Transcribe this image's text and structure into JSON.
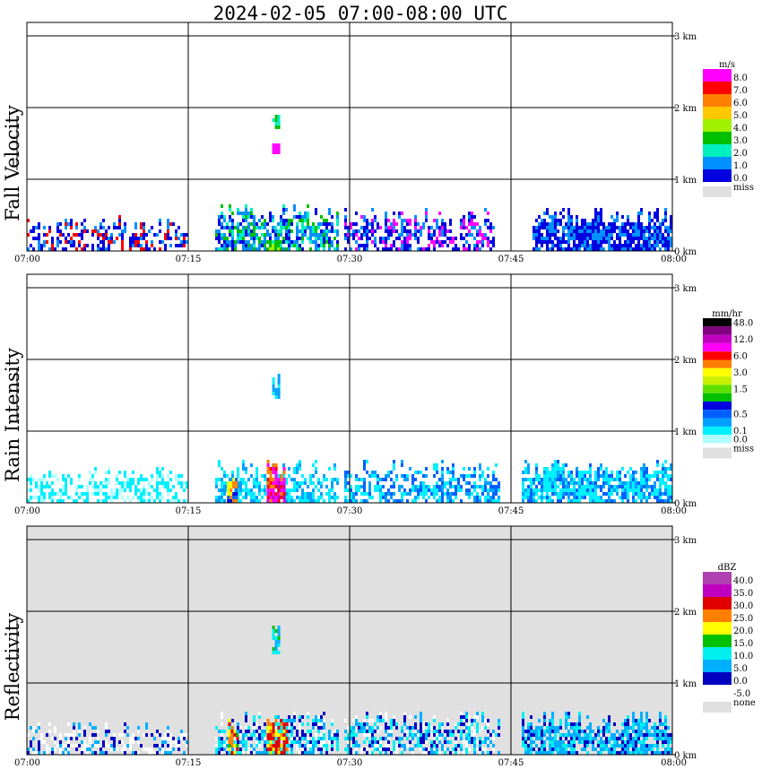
{
  "title": "2024-02-05   07:00-08:00 UTC",
  "x_ticks": [
    "07:00",
    "07:15",
    "07:30",
    "07:45",
    "08:00"
  ],
  "height_ticks": [
    "3 km",
    "2 km",
    "1 km",
    "0 km"
  ],
  "chart_data": [
    {
      "type": "heatmap",
      "ylabel": "Fall Velocity",
      "legend_unit": "m/s",
      "legend": [
        {
          "label": "8.0",
          "color": "#ff00ff"
        },
        {
          "label": "7.0",
          "color": "#ff0000"
        },
        {
          "label": "6.0",
          "color": "#ff8000"
        },
        {
          "label": "5.0",
          "color": "#ffc800"
        },
        {
          "label": "4.0",
          "color": "#a0f000"
        },
        {
          "label": "3.0",
          "color": "#00c000"
        },
        {
          "label": "2.0",
          "color": "#00f0c0"
        },
        {
          "label": "1.0",
          "color": "#0090ff"
        },
        {
          "label": "0.0",
          "color": "#0000e0"
        }
      ],
      "missing_label": "miss",
      "missing_color": "#e0e0e0",
      "background": "#ffffff",
      "x_range": [
        "07:00",
        "08:00"
      ],
      "y_range_km": [
        0,
        3.2
      ],
      "regions": [
        {
          "t0": 0.0,
          "t1": 14.8,
          "h0": 0.0,
          "h1": 0.55,
          "density": 0.45,
          "palette": [
            8,
            8,
            7,
            1
          ]
        },
        {
          "t0": 17.5,
          "t1": 29.0,
          "h0": 0.0,
          "h1": 0.7,
          "density": 0.7,
          "palette": [
            8,
            7,
            7,
            6,
            5
          ]
        },
        {
          "t0": 22.5,
          "t1": 23.5,
          "h0": 0.0,
          "h1": 0.25,
          "density": 0.9,
          "palette": [
            5,
            4
          ]
        },
        {
          "t0": 29.5,
          "t1": 43.5,
          "h0": 0.0,
          "h1": 0.65,
          "density": 0.6,
          "palette": [
            8,
            8,
            7,
            0
          ]
        },
        {
          "t0": 47.0,
          "t1": 60.0,
          "h0": 0.0,
          "h1": 0.65,
          "density": 0.85,
          "palette": [
            8,
            8,
            7
          ]
        },
        {
          "t0": 22.8,
          "t1": 23.5,
          "h0": 1.35,
          "h1": 1.6,
          "density": 0.9,
          "palette": [
            0
          ]
        },
        {
          "t0": 22.8,
          "t1": 23.4,
          "h0": 1.7,
          "h1": 1.95,
          "density": 0.8,
          "palette": [
            5,
            6
          ]
        },
        {
          "t0": 0.0,
          "t1": 60.0,
          "h0": 3.0,
          "h1": 3.04,
          "density": 0.3,
          "palette": [
            4,
            4,
            5
          ]
        }
      ]
    },
    {
      "type": "heatmap",
      "ylabel": "Rain Intensity",
      "legend_unit": "mm/hr",
      "legend": [
        {
          "label": "48.0",
          "color": "#000000"
        },
        {
          "label": "",
          "color": "#800080"
        },
        {
          "label": "12.0",
          "color": "#c000c0"
        },
        {
          "label": "",
          "color": "#ff00ff"
        },
        {
          "label": "6.0",
          "color": "#ff0000"
        },
        {
          "label": "",
          "color": "#ff8000"
        },
        {
          "label": "3.0",
          "color": "#ffff00"
        },
        {
          "label": "",
          "color": "#c8f000"
        },
        {
          "label": "1.5",
          "color": "#60e000"
        },
        {
          "label": "",
          "color": "#00c000"
        },
        {
          "label": "",
          "color": "#0000e0"
        },
        {
          "label": "0.5",
          "color": "#0060ff"
        },
        {
          "label": "",
          "color": "#00a0ff"
        },
        {
          "label": "0.1",
          "color": "#00f0ff"
        },
        {
          "label": "0.0",
          "color": "#b0ffff"
        }
      ],
      "missing_label": "miss",
      "missing_color": "#e0e0e0",
      "background": "#ffffff",
      "x_range": [
        "07:00",
        "08:00"
      ],
      "y_range_km": [
        0,
        3.2
      ],
      "regions": [
        {
          "t0": 0.0,
          "t1": 15.0,
          "h0": 0.0,
          "h1": 0.55,
          "density": 0.5,
          "palette": [
            13,
            13,
            14
          ]
        },
        {
          "t0": 17.5,
          "t1": 29.0,
          "h0": 0.0,
          "h1": 0.65,
          "density": 0.6,
          "palette": [
            13,
            13,
            12
          ]
        },
        {
          "t0": 18.6,
          "t1": 19.4,
          "h0": 0.0,
          "h1": 0.6,
          "density": 0.95,
          "palette": [
            6,
            5,
            10,
            11
          ]
        },
        {
          "t0": 22.3,
          "t1": 24.0,
          "h0": 0.0,
          "h1": 0.65,
          "density": 0.95,
          "palette": [
            3,
            3,
            2,
            4,
            5
          ]
        },
        {
          "t0": 29.5,
          "t1": 44.0,
          "h0": 0.0,
          "h1": 0.65,
          "density": 0.55,
          "palette": [
            13,
            12,
            11
          ]
        },
        {
          "t0": 46.0,
          "t1": 60.0,
          "h0": 0.0,
          "h1": 0.65,
          "density": 0.75,
          "palette": [
            13,
            13,
            12,
            11
          ]
        },
        {
          "t0": 22.8,
          "t1": 23.4,
          "h0": 1.45,
          "h1": 1.95,
          "density": 0.8,
          "palette": [
            13,
            12
          ]
        },
        {
          "t0": 0.0,
          "t1": 60.0,
          "h0": 3.0,
          "h1": 3.04,
          "density": 0.3,
          "palette": [
            13,
            14
          ]
        }
      ]
    },
    {
      "type": "heatmap",
      "ylabel": "Reflectivity",
      "legend_unit": "dBZ",
      "legend": [
        {
          "label": "40.0",
          "color": "#b040b0"
        },
        {
          "label": "35.0",
          "color": "#c000c0"
        },
        {
          "label": "30.0",
          "color": "#e00000"
        },
        {
          "label": "25.0",
          "color": "#ff8000"
        },
        {
          "label": "20.0",
          "color": "#ffff00"
        },
        {
          "label": "15.0",
          "color": "#00c000"
        },
        {
          "label": "10.0",
          "color": "#00f0f0"
        },
        {
          "label": "5.0",
          "color": "#00b0ff"
        },
        {
          "label": "0.0",
          "color": "#0000c0"
        },
        {
          "label": "-5.0",
          "color": "#ffffff"
        }
      ],
      "missing_label": "none",
      "missing_color": "#e0e0e0",
      "background": "#e0e0e0",
      "x_range": [
        "07:00",
        "08:00"
      ],
      "y_range_km": [
        0,
        3.2
      ],
      "regions": [
        {
          "t0": 0.0,
          "t1": 15.0,
          "h0": 0.0,
          "h1": 0.5,
          "density": 0.5,
          "palette": [
            9,
            9,
            8,
            7
          ]
        },
        {
          "t0": 17.5,
          "t1": 29.0,
          "h0": 0.0,
          "h1": 0.65,
          "density": 0.7,
          "palette": [
            6,
            7,
            8,
            9
          ]
        },
        {
          "t0": 18.7,
          "t1": 19.5,
          "h0": 0.0,
          "h1": 0.6,
          "density": 0.95,
          "palette": [
            3,
            2,
            4,
            5,
            6
          ]
        },
        {
          "t0": 22.3,
          "t1": 24.2,
          "h0": 0.0,
          "h1": 0.65,
          "density": 0.95,
          "palette": [
            2,
            2,
            3,
            4,
            6
          ]
        },
        {
          "t0": 29.5,
          "t1": 44.0,
          "h0": 0.0,
          "h1": 0.65,
          "density": 0.6,
          "palette": [
            6,
            7,
            8,
            9
          ]
        },
        {
          "t0": 46.0,
          "t1": 60.0,
          "h0": 0.0,
          "h1": 0.65,
          "density": 0.8,
          "palette": [
            6,
            7,
            7,
            8
          ]
        },
        {
          "t0": 22.8,
          "t1": 23.4,
          "h0": 1.4,
          "h1": 1.9,
          "density": 0.8,
          "palette": [
            6,
            5,
            7
          ]
        },
        {
          "t0": 0.0,
          "t1": 60.0,
          "h0": 3.0,
          "h1": 3.04,
          "density": 0.3,
          "palette": [
            5,
            6
          ]
        }
      ]
    }
  ]
}
